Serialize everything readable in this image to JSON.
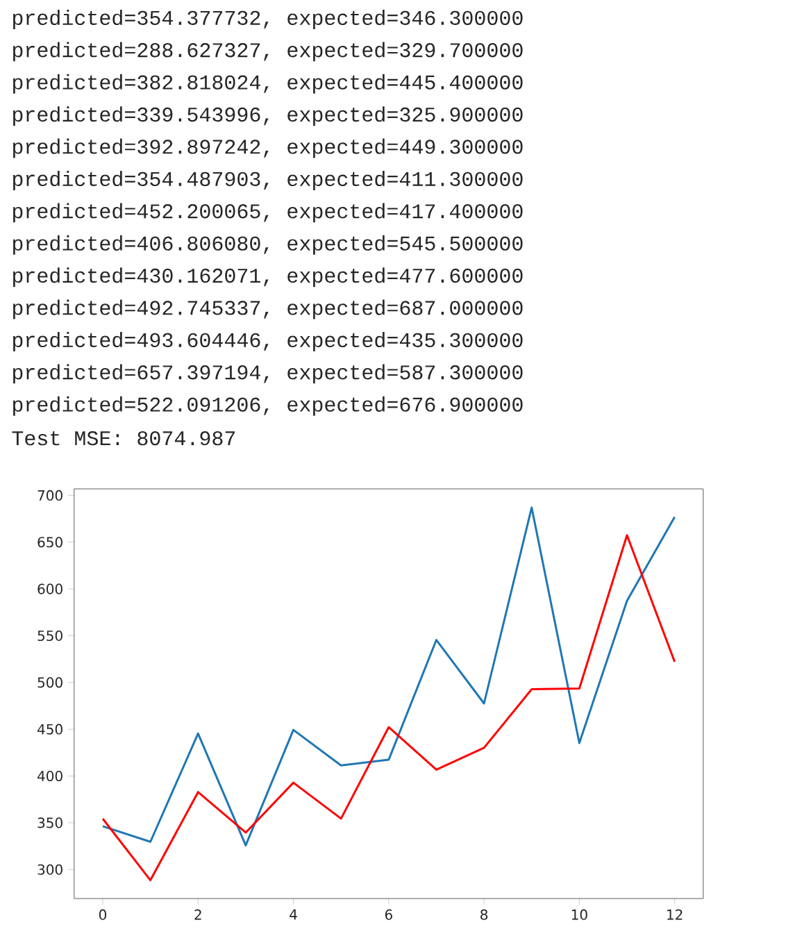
{
  "chart_data": {
    "type": "line",
    "annotations": [
      "predicted=354.377732, expected=346.300000",
      "predicted=288.627327, expected=329.700000",
      "predicted=382.818024, expected=445.400000",
      "predicted=339.543996, expected=325.900000",
      "predicted=392.897242, expected=449.300000",
      "predicted=354.487903, expected=411.300000",
      "predicted=452.200065, expected=417.400000",
      "predicted=406.806080, expected=545.500000",
      "predicted=430.162071, expected=477.600000",
      "predicted=492.745337, expected=687.000000",
      "predicted=493.604446, expected=435.300000",
      "predicted=657.397194, expected=587.300000",
      "predicted=522.091206, expected=676.900000",
      "Test MSE: 8074.987"
    ],
    "x": [
      0,
      1,
      2,
      3,
      4,
      5,
      6,
      7,
      8,
      9,
      10,
      11,
      12
    ],
    "series": [
      {
        "color": "#1f77b4",
        "values": [
          346.3,
          329.7,
          445.4,
          325.9,
          449.3,
          411.3,
          417.4,
          545.5,
          477.6,
          687.0,
          435.3,
          587.3,
          676.9
        ]
      },
      {
        "color": "#ff0000",
        "values": [
          354.377732,
          288.627327,
          382.818024,
          339.543996,
          392.897242,
          354.487903,
          452.200065,
          406.80608,
          430.162071,
          492.745337,
          493.604446,
          657.397194,
          522.091206
        ]
      }
    ],
    "xlim": [
      -0.6,
      12.6
    ],
    "ylim": [
      269,
      707
    ],
    "xticks": [
      0,
      2,
      4,
      6,
      8,
      10,
      12
    ],
    "yticks": [
      300,
      350,
      400,
      450,
      500,
      550,
      600,
      650,
      700
    ]
  }
}
